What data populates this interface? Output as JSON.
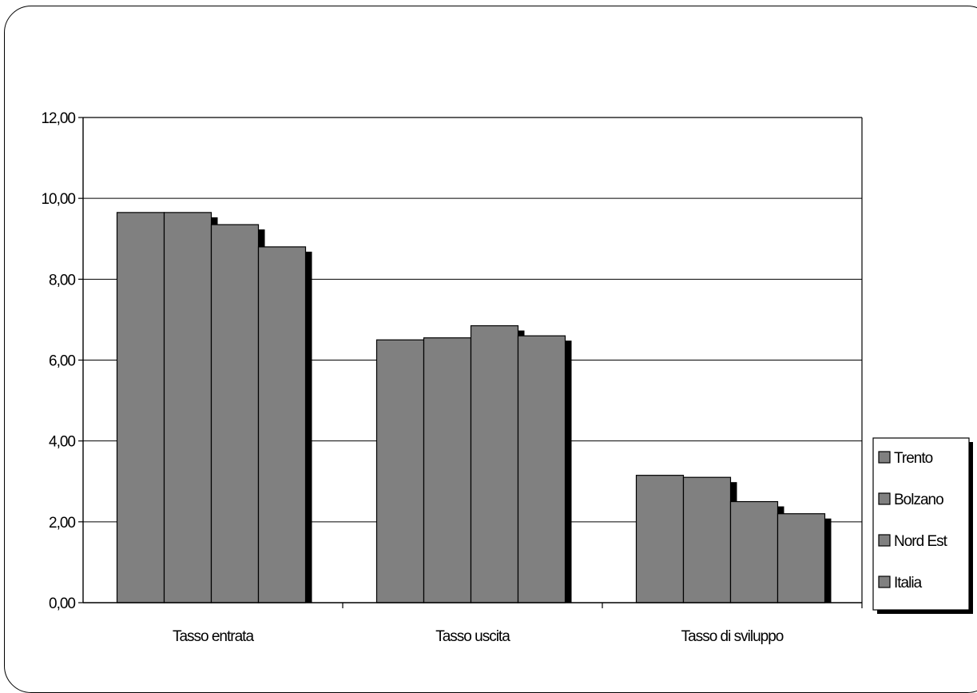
{
  "chart_data": {
    "type": "bar",
    "categories": [
      "Tasso entrata",
      "Tasso uscita",
      "Tasso di sviluppo"
    ],
    "series": [
      {
        "name": "Trento",
        "values": [
          9.65,
          6.5,
          3.15
        ]
      },
      {
        "name": "Bolzano",
        "values": [
          9.65,
          6.55,
          3.1
        ]
      },
      {
        "name": "Nord Est",
        "values": [
          9.35,
          6.85,
          2.5
        ]
      },
      {
        "name": "Italia",
        "values": [
          8.8,
          6.6,
          2.2
        ]
      }
    ],
    "ylim": [
      0,
      12
    ],
    "yticks": [
      "0,00",
      "2,00",
      "4,00",
      "6,00",
      "8,00",
      "10,00",
      "12,00"
    ],
    "grid": true,
    "legend_position": "right",
    "colors": {
      "bar": "#808080",
      "shadow": "#000000",
      "grid": "#000000"
    }
  }
}
